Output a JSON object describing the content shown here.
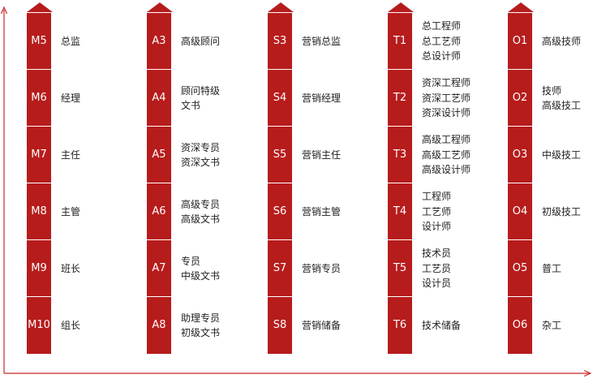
{
  "colors": {
    "accent": "#b71c1c",
    "axis": "#c62828"
  },
  "tracks": [
    {
      "id": "m",
      "rows": [
        {
          "code": "M5",
          "lines": [
            "总监"
          ]
        },
        {
          "code": "M6",
          "lines": [
            "经理"
          ]
        },
        {
          "code": "M7",
          "lines": [
            "主任"
          ]
        },
        {
          "code": "M8",
          "lines": [
            "主管"
          ]
        },
        {
          "code": "M9",
          "lines": [
            "班长"
          ]
        },
        {
          "code": "M10",
          "lines": [
            "组长"
          ]
        }
      ]
    },
    {
      "id": "a",
      "rows": [
        {
          "code": "A3",
          "lines": [
            "高级顾问"
          ]
        },
        {
          "code": "A4",
          "lines": [
            "顾问特级",
            "文书"
          ]
        },
        {
          "code": "A5",
          "lines": [
            "资深专员",
            "资深文书"
          ]
        },
        {
          "code": "A6",
          "lines": [
            "高级专员",
            "高级文书"
          ]
        },
        {
          "code": "A7",
          "lines": [
            "专员",
            "中级文书"
          ]
        },
        {
          "code": "A8",
          "lines": [
            "助理专员",
            "初级文书"
          ]
        }
      ]
    },
    {
      "id": "s",
      "rows": [
        {
          "code": "S3",
          "lines": [
            "营销总监"
          ]
        },
        {
          "code": "S4",
          "lines": [
            "营销经理"
          ]
        },
        {
          "code": "S5",
          "lines": [
            "营销主任"
          ]
        },
        {
          "code": "S6",
          "lines": [
            "营销主管"
          ]
        },
        {
          "code": "S7",
          "lines": [
            "营销专员"
          ]
        },
        {
          "code": "S8",
          "lines": [
            "营销储备"
          ]
        }
      ]
    },
    {
      "id": "t",
      "rows": [
        {
          "code": "T1",
          "lines": [
            "总工程师",
            "总工艺师",
            "总设计师"
          ]
        },
        {
          "code": "T2",
          "lines": [
            "资深工程师",
            "资深工艺师",
            "资深设计师"
          ]
        },
        {
          "code": "T3",
          "lines": [
            "高级工程师",
            "高级工艺师",
            "高级设计师"
          ]
        },
        {
          "code": "T4",
          "lines": [
            "工程师",
            "工艺师",
            "设计师"
          ]
        },
        {
          "code": "T5",
          "lines": [
            "技术员",
            "工艺员",
            "设计员"
          ]
        },
        {
          "code": "T6",
          "lines": [
            "技术储备"
          ]
        }
      ]
    },
    {
      "id": "o",
      "rows": [
        {
          "code": "O1",
          "lines": [
            "高级技师"
          ]
        },
        {
          "code": "O2",
          "lines": [
            "技师",
            "高级技工"
          ]
        },
        {
          "code": "O3",
          "lines": [
            "中级技工"
          ]
        },
        {
          "code": "O4",
          "lines": [
            "初级技工"
          ]
        },
        {
          "code": "O5",
          "lines": [
            "普工"
          ]
        },
        {
          "code": "O6",
          "lines": [
            "杂工"
          ]
        }
      ]
    }
  ]
}
